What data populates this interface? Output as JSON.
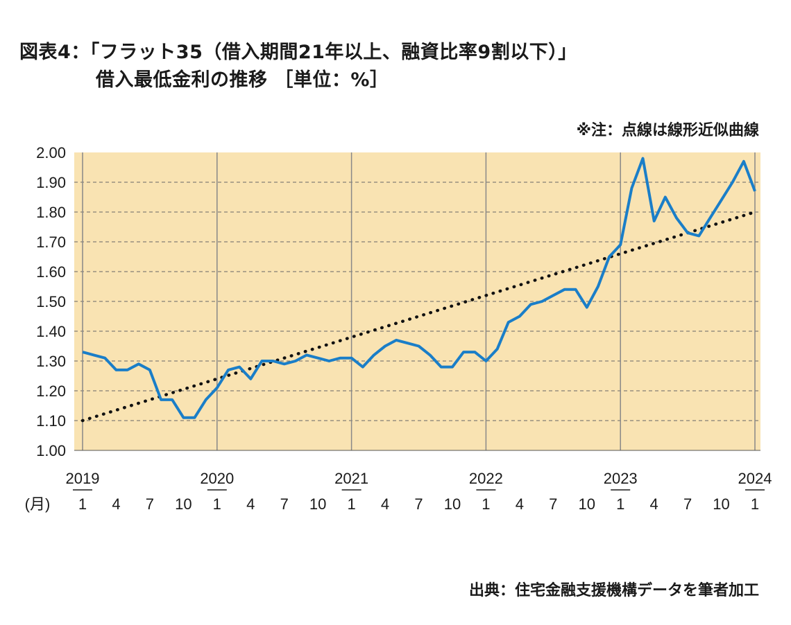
{
  "header": {
    "title_line1": "図表4：「フラット35（借入期間21年以上、融資比率9割以下）」",
    "title_line2": "借入最低金利の推移 ［単位：%］",
    "note": "※注：点線は線形近似曲線",
    "source": "出典：住宅金融支援機構データを筆者加工"
  },
  "chart_data": {
    "type": "line",
    "ylim": [
      1.0,
      2.0
    ],
    "y_ticks": [
      "2.00",
      "1.90",
      "1.80",
      "1.70",
      "1.60",
      "1.50",
      "1.40",
      "1.30",
      "1.20",
      "1.10",
      "1.00"
    ],
    "month_axis_label": "(月)",
    "year_labels": [
      "2019",
      "2020",
      "2021",
      "2022",
      "2023",
      "2024"
    ],
    "month_labels": [
      "1",
      "4",
      "7",
      "10",
      "1",
      "4",
      "7",
      "10",
      "1",
      "4",
      "7",
      "10",
      "1",
      "4",
      "7",
      "10",
      "1",
      "4",
      "7",
      "10",
      "1"
    ],
    "grid": true,
    "colors": {
      "plot_bg": "#f9e3b2",
      "line": "#1a7ec8",
      "trend": "#111111",
      "grid": "#666666"
    },
    "series": [
      {
        "values": [
          1.33,
          1.32,
          1.31,
          1.27,
          1.27,
          1.29,
          1.27,
          1.17,
          1.17,
          1.11,
          1.11,
          1.17,
          1.21,
          1.27,
          1.28,
          1.24,
          1.3,
          1.3,
          1.29,
          1.3,
          1.32,
          1.31,
          1.3,
          1.31,
          1.31,
          1.28,
          1.32,
          1.35,
          1.37,
          1.36,
          1.35,
          1.32,
          1.28,
          1.28,
          1.33,
          1.33,
          1.3,
          1.34,
          1.43,
          1.45,
          1.49,
          1.5,
          1.52,
          1.54,
          1.54,
          1.48,
          1.55,
          1.65,
          1.69,
          1.88,
          1.98,
          1.77,
          1.85,
          1.78,
          1.73,
          1.72,
          1.78,
          1.84,
          1.9,
          1.97,
          1.87
        ],
        "x_start": "2019-01",
        "trend": [
          1.1,
          1.8
        ]
      }
    ]
  }
}
